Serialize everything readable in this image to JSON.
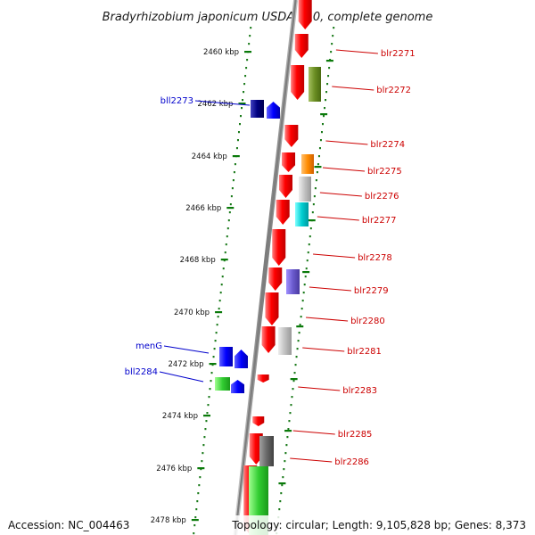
{
  "title": "Bradyrhizobium japonicum USDA 110, complete genome",
  "accession": "Accession: NC_004463",
  "topology": "Topology: circular; Length: 9,105,828 bp; Genes: 8,373",
  "kbp_labels": [
    "2460 kbp",
    "2462 kbp",
    "2464 kbp",
    "2466 kbp",
    "2468 kbp",
    "2470 kbp",
    "2472 kbp",
    "2474 kbp",
    "2476 kbp",
    "2478 kbp"
  ],
  "gene_labels_right": [
    "blr2271",
    "blr2272",
    "blr2274",
    "blr2275",
    "blr2276",
    "blr2277",
    "blr2278",
    "blr2279",
    "blr2280",
    "blr2281",
    "blr2283",
    "blr2285",
    "blr2286"
  ],
  "gene_labels_left": [
    "bll2273",
    "menG",
    "bll2284"
  ],
  "colors": {
    "backbone": "#808080",
    "gene_forward": "#ff0000",
    "ticks": "#006400",
    "label_right": "#cc0000",
    "label_left": "#0000cc",
    "olive": "#6b8e23",
    "orange": "#ff8c00",
    "silver": "#c0c0c0",
    "cyan": "#00ced1",
    "slate": "#6a5acd",
    "navy": "#000080",
    "blue": "#0000ff",
    "green": "#32cd32",
    "darkgray": "#696969"
  }
}
